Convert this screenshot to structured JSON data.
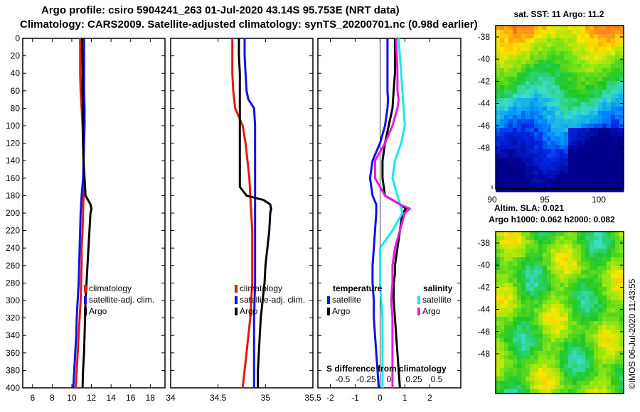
{
  "title_line1": "Argo profile: csiro 5904241_263 01-Jul-2020 43.14S 95.753E (NRT data)",
  "title_line2": "Climatology: CARS2009. Satellite-adjusted climatology: synTS_20200701.nc (0.98d earlier)",
  "colors": {
    "red": "#e11a12",
    "blue": "#1010e8",
    "black": "#000000",
    "cyan": "#14eaf0",
    "magenta": "#e81ae0"
  },
  "chart_data": [
    {
      "id": "temperature",
      "type": "line",
      "xlim": [
        5,
        19.5
      ],
      "ylim": [
        0,
        400
      ],
      "xticks": [
        "6",
        "8",
        "10",
        "12",
        "14",
        "16",
        "18"
      ],
      "yticks": [
        "0",
        "20",
        "40",
        "60",
        "80",
        "100",
        "120",
        "140",
        "160",
        "180",
        "200",
        "220",
        "240",
        "260",
        "280",
        "300",
        "320",
        "340",
        "360",
        "380",
        "400"
      ],
      "series": [
        {
          "name": "climatology",
          "color": "red",
          "depth": [
            0,
            40,
            60,
            80,
            100,
            120,
            140,
            160,
            180,
            200,
            220,
            240,
            260,
            280,
            300,
            320,
            340,
            360,
            380,
            400
          ],
          "values": [
            10.85,
            10.85,
            10.9,
            11.0,
            11.1,
            11.15,
            11.2,
            11.25,
            11.2,
            11.15,
            11.1,
            11.0,
            11.0,
            10.95,
            10.9,
            10.8,
            10.7,
            10.6,
            10.5,
            10.4
          ]
        },
        {
          "name": "satellite-adj. clim.",
          "color": "blue",
          "depth": [
            0,
            40,
            60,
            80,
            100,
            120,
            140,
            160,
            180,
            200,
            220,
            240,
            260,
            280,
            300,
            320,
            340,
            360,
            380,
            400
          ],
          "values": [
            11.25,
            11.25,
            11.25,
            11.3,
            11.3,
            11.25,
            11.2,
            11.15,
            11.0,
            10.9,
            10.85,
            10.8,
            10.75,
            10.7,
            10.6,
            10.5,
            10.45,
            10.35,
            10.25,
            10.15
          ]
        },
        {
          "name": "Argo",
          "color": "black",
          "depth": [
            0,
            40,
            60,
            80,
            100,
            120,
            140,
            160,
            180,
            190,
            195,
            200,
            220,
            240,
            260,
            280,
            300,
            320,
            340,
            360,
            380,
            400
          ],
          "values": [
            11.05,
            11.1,
            11.1,
            11.15,
            11.15,
            11.15,
            11.2,
            11.3,
            11.4,
            11.9,
            12.0,
            11.9,
            11.8,
            11.7,
            11.6,
            11.5,
            11.4,
            11.35,
            11.3,
            11.25,
            11.15,
            11.1
          ]
        }
      ],
      "legend": [
        "climatology",
        "satellite-adj. clim.",
        "Argo"
      ]
    },
    {
      "id": "salinity",
      "type": "line",
      "xlim": [
        34,
        35.5
      ],
      "ylim": [
        0,
        400
      ],
      "xticks": [
        "34",
        "34.5",
        "35",
        "35.5"
      ],
      "series": [
        {
          "name": "climatology",
          "color": "red",
          "depth": [
            0,
            20,
            40,
            60,
            80,
            90,
            100,
            120,
            140,
            160,
            180,
            200,
            220,
            240,
            260,
            280,
            300,
            320,
            340,
            360,
            380,
            400
          ],
          "values": [
            34.65,
            34.65,
            34.65,
            34.66,
            34.68,
            34.72,
            34.76,
            34.79,
            34.81,
            34.83,
            34.84,
            34.85,
            34.86,
            34.86,
            34.86,
            34.86,
            34.85,
            34.84,
            34.82,
            34.8,
            34.78,
            34.76
          ]
        },
        {
          "name": "satellite-adj. clim.",
          "color": "blue",
          "depth": [
            0,
            20,
            40,
            60,
            70,
            80,
            100,
            140,
            180,
            200,
            240,
            280,
            320,
            360,
            400
          ],
          "values": [
            34.78,
            34.78,
            34.79,
            34.8,
            34.82,
            34.88,
            34.89,
            34.89,
            34.89,
            34.89,
            34.89,
            34.89,
            34.88,
            34.88,
            34.88
          ]
        },
        {
          "name": "Argo",
          "color": "black",
          "depth": [
            0,
            20,
            40,
            60,
            80,
            100,
            140,
            170,
            180,
            185,
            190,
            195,
            200,
            220,
            240,
            260,
            280,
            300,
            320,
            340,
            360,
            380,
            400
          ],
          "values": [
            34.72,
            34.72,
            34.73,
            34.73,
            34.73,
            34.73,
            34.73,
            34.73,
            34.8,
            34.98,
            35.05,
            35.06,
            35.05,
            35.04,
            35.02,
            35.0,
            34.99,
            34.97,
            34.95,
            34.94,
            34.93,
            34.92,
            34.92
          ]
        }
      ],
      "legend": [
        "climatology",
        "satellite-adj. clim.",
        "Argo"
      ]
    },
    {
      "id": "difference",
      "type": "line",
      "xlim": [
        -2.5,
        3.25
      ],
      "ylim": [
        0,
        400
      ],
      "xticks": [
        "-2",
        "-1",
        "0",
        "1",
        "2"
      ],
      "second_axis_label": "S difference from climatology",
      "second_axis_ticks": [
        "-0.5",
        "-0.25",
        "0",
        "0.25",
        "0.5"
      ],
      "series": [
        {
          "name": "satellite (temperature)",
          "color": "blue",
          "depth": [
            0,
            40,
            60,
            70,
            80,
            100,
            120,
            140,
            160,
            180,
            190,
            200,
            220,
            240,
            260,
            280,
            300,
            320,
            340,
            360,
            380,
            400
          ],
          "values": [
            0.3,
            0.3,
            0.3,
            0.32,
            0.3,
            0.2,
            0.0,
            -0.3,
            -0.4,
            -0.3,
            -0.15,
            -0.15,
            -0.2,
            -0.25,
            -0.3,
            -0.3,
            -0.25,
            -0.25,
            -0.2,
            -0.15,
            -0.1,
            -0.05
          ]
        },
        {
          "name": "Argo (temperature)",
          "color": "black",
          "depth": [
            0,
            40,
            60,
            80,
            100,
            120,
            140,
            160,
            180,
            190,
            195,
            200,
            220,
            240,
            260,
            270,
            280,
            300,
            320,
            340,
            360,
            380,
            400
          ],
          "values": [
            0.6,
            0.6,
            0.55,
            0.5,
            0.35,
            0.2,
            0.1,
            0.1,
            0.2,
            0.8,
            1.05,
            0.9,
            0.8,
            0.7,
            0.6,
            0.6,
            0.55,
            0.55,
            0.6,
            0.65,
            0.7,
            0.75,
            0.8
          ]
        },
        {
          "name": "satellite (salinity)",
          "color": "cyan",
          "depth": [
            0,
            40,
            60,
            80,
            100,
            120,
            140,
            160,
            180,
            200,
            220,
            240,
            260,
            280,
            300,
            320,
            340,
            360,
            380,
            400
          ],
          "values": [
            0.75,
            0.85,
            0.9,
            0.95,
            1.0,
            0.85,
            0.6,
            0.5,
            0.7,
            0.9,
            0.5,
            0.0,
            0.0,
            0.0,
            0.05,
            0.1,
            0.1,
            0.1,
            0.1,
            0.1
          ]
        },
        {
          "name": "Argo (salinity)",
          "color": "magenta",
          "depth": [
            0,
            40,
            60,
            70,
            80,
            100,
            120,
            140,
            160,
            180,
            190,
            195,
            200,
            220,
            240,
            260,
            280,
            300,
            320,
            340,
            360,
            380,
            400
          ],
          "values": [
            0.65,
            0.7,
            0.7,
            0.75,
            0.7,
            0.5,
            0.2,
            -0.2,
            -0.2,
            0.2,
            0.8,
            1.2,
            1.0,
            0.8,
            0.6,
            0.5,
            0.5,
            0.45,
            0.5,
            0.5,
            0.5,
            0.5,
            0.5
          ]
        }
      ],
      "legend_temperature_title": "temperature",
      "legend_salinity_title": "salinity",
      "legend_temperature": [
        "satellite",
        "Argo"
      ],
      "legend_salinity": [
        "satellite",
        "Argo"
      ]
    },
    {
      "id": "sst-map",
      "type": "heatmap",
      "title": "sat. SST: 11 Argo: 11.2",
      "xticks": [
        "90",
        "95",
        "100"
      ],
      "yticks": [
        "-38",
        "-40",
        "-42",
        "-44",
        "-46",
        "-48"
      ]
    },
    {
      "id": "sla-map",
      "type": "heatmap",
      "title_line1": "Altim. SLA: 0.021",
      "title_line2": "Argo h1000: 0.062 h2000: 0.082",
      "yticks": [
        "-38",
        "-40",
        "-42",
        "-44",
        "-46",
        "-48"
      ]
    }
  ],
  "credit": "©IMOS 06-Jul-2020 11:43:55"
}
